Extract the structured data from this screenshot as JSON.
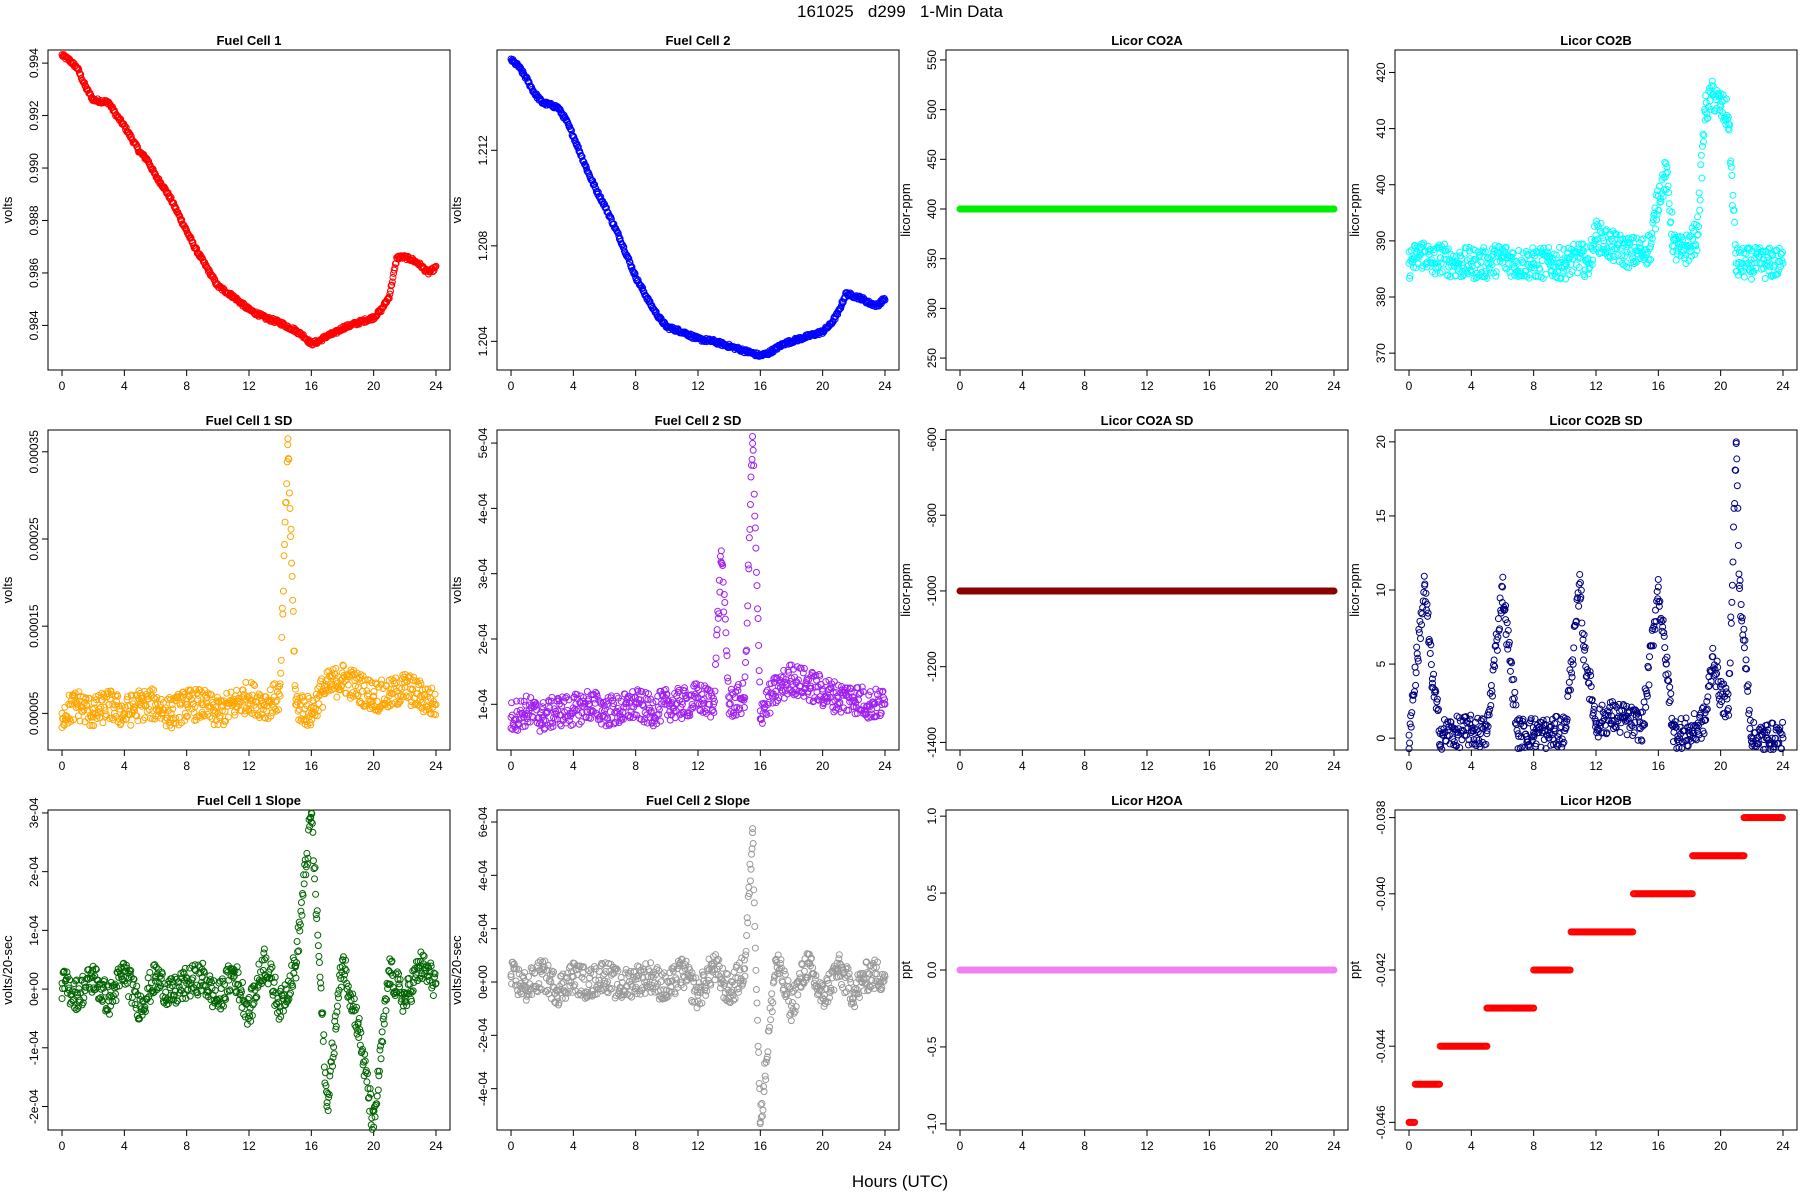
{
  "page": {
    "title": "161025   d299   1-Min Data",
    "xlabel": "Hours (UTC)"
  },
  "chart_data": [
    {
      "type": "line",
      "title": "Fuel Cell 1",
      "ylabel": "volts",
      "color": "#ff0000",
      "ylim": [
        0.9823,
        0.9945
      ],
      "yticks": [
        0.984,
        0.986,
        0.988,
        0.99,
        0.992,
        0.994
      ],
      "yticklabels": [
        "0.984",
        "0.986",
        "0.988",
        "0.990",
        "0.992",
        "0.994"
      ],
      "x": [
        0,
        0.5,
        1,
        1.5,
        2,
        3,
        3.5,
        4,
        4.5,
        5,
        5.5,
        6,
        6.5,
        7,
        7.5,
        8,
        8.5,
        9,
        9.5,
        10,
        11,
        12,
        13,
        14,
        15,
        15.5,
        16,
        16.5,
        17,
        17.5,
        18,
        19,
        20,
        20.5,
        21,
        21.5,
        22,
        22.5,
        23,
        23.5,
        24
      ],
      "values": [
        0.9943,
        0.9941,
        0.9938,
        0.9931,
        0.9926,
        0.9925,
        0.992,
        0.9916,
        0.9911,
        0.9906,
        0.9903,
        0.9897,
        0.9893,
        0.9888,
        0.9882,
        0.9876,
        0.987,
        0.9865,
        0.986,
        0.9855,
        0.9851,
        0.9846,
        0.9843,
        0.9841,
        0.9838,
        0.9836,
        0.9833,
        0.9834,
        0.9836,
        0.9837,
        0.9839,
        0.9841,
        0.9843,
        0.9846,
        0.9851,
        0.9866,
        0.9866,
        0.9865,
        0.9863,
        0.986,
        0.9862
      ]
    },
    {
      "type": "line",
      "title": "Fuel Cell 2",
      "ylabel": "volts",
      "color": "#0000ff",
      "ylim": [
        1.2028,
        1.2162
      ],
      "yticks": [
        1.204,
        1.208,
        1.212
      ],
      "yticklabels": [
        "1.204",
        "1.208",
        "1.212"
      ],
      "x": [
        0,
        0.5,
        1,
        1.5,
        2,
        3,
        3.5,
        4,
        4.5,
        5,
        5.5,
        6,
        6.5,
        7,
        7.5,
        8,
        8.5,
        9,
        9.5,
        10,
        11,
        12,
        13,
        14,
        15,
        15.5,
        16,
        16.5,
        17,
        17.5,
        18,
        19,
        20,
        20.5,
        21,
        21.5,
        22,
        22.5,
        23,
        23.5,
        24
      ],
      "values": [
        1.2158,
        1.2155,
        1.215,
        1.2144,
        1.214,
        1.2138,
        1.2133,
        1.2126,
        1.2118,
        1.211,
        1.2103,
        1.2097,
        1.209,
        1.2083,
        1.2075,
        1.2067,
        1.2061,
        1.2055,
        1.205,
        1.2046,
        1.2044,
        1.2041,
        1.204,
        1.2038,
        1.2036,
        1.2035,
        1.2034,
        1.2035,
        1.2037,
        1.2039,
        1.204,
        1.2042,
        1.2044,
        1.2047,
        1.2052,
        1.206,
        1.2059,
        1.2058,
        1.2056,
        1.2055,
        1.2058
      ]
    },
    {
      "type": "line",
      "title": "Licor CO2A",
      "ylabel": "licor-ppm",
      "color": "#00ee00",
      "ylim": [
        238,
        560
      ],
      "yticks": [
        250,
        300,
        350,
        400,
        450,
        500,
        550
      ],
      "yticklabels": [
        "250",
        "300",
        "350",
        "400",
        "450",
        "500",
        "550"
      ],
      "x": [
        0,
        24
      ],
      "values": [
        400,
        400
      ]
    },
    {
      "type": "scatter",
      "title": "Licor CO2B",
      "ylabel": "licor-ppm",
      "color": "#00ffff",
      "ylim": [
        367,
        424
      ],
      "yticks": [
        370,
        380,
        390,
        400,
        410,
        420
      ],
      "yticklabels": [
        "370",
        "380",
        "390",
        "400",
        "410",
        "420"
      ],
      "x": [
        0,
        0.5,
        1,
        1.5,
        2,
        3,
        4,
        5,
        6,
        7,
        8,
        9,
        10,
        11,
        11.5,
        12,
        12.5,
        13,
        14,
        15,
        15.5,
        16,
        16.5,
        17,
        17.5,
        18,
        18.5,
        19,
        19.5,
        20,
        20.5,
        21,
        22,
        23,
        24
      ],
      "values": [
        386,
        387,
        388,
        386,
        387,
        386,
        386,
        386,
        387,
        386,
        386,
        386,
        386,
        387,
        386,
        391,
        390,
        389,
        388,
        388,
        389,
        398,
        402,
        389,
        388,
        389,
        391,
        413,
        416,
        414,
        412,
        386,
        386,
        386,
        386
      ]
    },
    {
      "type": "scatter",
      "title": "Fuel Cell 1 SD",
      "ylabel": "volts",
      "color": "#ffa500",
      "ylim": [
        8e-06,
        0.000375
      ],
      "yticks": [
        5e-05,
        0.00015,
        0.00025,
        0.00035
      ],
      "yticklabels": [
        "0.00005",
        "0.00015",
        "0.00025",
        "0.00035"
      ],
      "x": [
        0,
        1,
        2,
        3,
        4,
        5,
        6,
        7,
        8,
        9,
        10,
        11,
        12,
        13,
        14,
        14.5,
        15,
        16,
        16.5,
        17,
        18,
        19,
        20,
        21,
        22,
        23,
        24
      ],
      "values": [
        5e-05,
        6e-05,
        5e-05,
        6e-05,
        5e-05,
        6e-05,
        6e-05,
        5e-05,
        6e-05,
        6e-05,
        5e-05,
        6e-05,
        7e-05,
        6e-05,
        7e-05,
        0.000365,
        6e-05,
        5e-05,
        7e-05,
        8e-05,
        9e-05,
        8e-05,
        7e-05,
        7e-05,
        8e-05,
        7e-05,
        6e-05
      ]
    },
    {
      "type": "scatter",
      "title": "Fuel Cell 2 SD",
      "ylabel": "volts",
      "color": "#a020f0",
      "ylim": [
        3e-05,
        0.00052
      ],
      "yticks": [
        0.0001,
        0.0002,
        0.0003,
        0.0004,
        0.0005
      ],
      "yticklabels": [
        "1e-04",
        "2e-04",
        "3e-04",
        "4e-04",
        "5e-04"
      ],
      "x": [
        0,
        1,
        2,
        3,
        4,
        5,
        6,
        7,
        8,
        9,
        10,
        11,
        12,
        13,
        13.5,
        14,
        15,
        15.5,
        16,
        17,
        18,
        19,
        20,
        21,
        22,
        23,
        24
      ],
      "values": [
        8e-05,
        9e-05,
        8e-05,
        9e-05,
        9e-05,
        0.0001,
        9e-05,
        9e-05,
        0.0001,
        9e-05,
        0.0001,
        0.0001,
        0.00011,
        0.0001,
        0.000335,
        0.0001,
        0.00011,
        0.00051,
        9e-05,
        0.00012,
        0.00014,
        0.00013,
        0.00012,
        0.00011,
        0.00011,
        0.0001,
        0.0001
      ]
    },
    {
      "type": "line",
      "title": "Licor CO2A SD",
      "ylabel": "licor-ppm",
      "color": "#8b0000",
      "ylim": [
        -1420,
        -575
      ],
      "yticks": [
        -1400,
        -1200,
        -1000,
        -800,
        -600
      ],
      "yticklabels": [
        "-1400",
        "-1200",
        "-1000",
        "-800",
        "-600"
      ],
      "x": [
        0,
        24
      ],
      "values": [
        -1000,
        -1000
      ]
    },
    {
      "type": "scatter",
      "title": "Licor CO2B SD",
      "ylabel": "licor-ppm",
      "color": "#000080",
      "ylim": [
        -0.8,
        20.8
      ],
      "yticks": [
        0,
        5,
        10,
        15,
        20
      ],
      "yticklabels": [
        "0",
        "5",
        "10",
        "15",
        "20"
      ],
      "x": [
        0,
        1,
        1.5,
        2,
        3,
        4,
        5,
        6,
        6.2,
        7,
        8,
        9,
        10,
        11,
        11.2,
        12,
        13,
        14,
        15,
        16,
        16.5,
        17,
        18,
        19,
        19.5,
        20,
        20.5,
        21,
        21.2,
        22,
        23,
        24
      ],
      "values": [
        0.2,
        10.3,
        4.0,
        0.3,
        0.4,
        0.5,
        0.3,
        10.2,
        8.0,
        0.3,
        0.4,
        0.3,
        0.5,
        10.5,
        6.2,
        1.0,
        1.5,
        1.2,
        0.8,
        10.2,
        5.0,
        0.4,
        0.3,
        1.2,
        5.5,
        3.0,
        2.0,
        20.0,
        10.3,
        0.0,
        0.0,
        0.0
      ]
    },
    {
      "type": "scatter",
      "title": "Fuel Cell 1 Slope",
      "ylabel": "volts/20-sec",
      "color": "#006400",
      "ylim": [
        -0.00024,
        0.000305
      ],
      "yticks": [
        -0.0002,
        -0.0001,
        0,
        0.0001,
        0.0002,
        0.0003
      ],
      "yticklabels": [
        "-2e-04",
        "-1e-04",
        "0e+00",
        "1e-04",
        "2e-04",
        "3e-04"
      ],
      "x": [
        0,
        1,
        2,
        3,
        4,
        5,
        6,
        7,
        8,
        9,
        10,
        11,
        12,
        13,
        14,
        15,
        16,
        17,
        18,
        19,
        20,
        21,
        22,
        23,
        24
      ],
      "values": [
        1e-05,
        -1e-05,
        2e-05,
        -2e-05,
        3e-05,
        -3e-05,
        2e-05,
        -1e-05,
        1e-05,
        2e-05,
        -2e-05,
        3e-05,
        -4e-05,
        5e-05,
        -3e-05,
        4e-05,
        0.0003,
        -0.0002,
        5e-05,
        -6e-05,
        -0.000235,
        3e-05,
        -2e-05,
        4e-05,
        1e-05
      ]
    },
    {
      "type": "scatter",
      "title": "Fuel Cell 2 Slope",
      "ylabel": "volts/20-sec",
      "color": "#999999",
      "ylim": [
        -0.000555,
        0.000645
      ],
      "yticks": [
        -0.0004,
        -0.0002,
        0,
        0.0002,
        0.0004,
        0.0006
      ],
      "yticklabels": [
        "-4e-04",
        "-2e-04",
        "0e+00",
        "2e-04",
        "4e-04",
        "6e-04"
      ],
      "x": [
        0,
        1,
        2,
        3,
        4,
        5,
        6,
        7,
        8,
        9,
        10,
        11,
        12,
        13,
        14,
        15,
        15.5,
        16,
        17,
        18,
        19,
        20,
        21,
        22,
        23,
        24
      ],
      "values": [
        2e-05,
        -2e-05,
        3e-05,
        -3e-05,
        2e-05,
        -1e-05,
        3e-05,
        -2e-05,
        1e-05,
        2e-05,
        -3e-05,
        4e-05,
        -5e-05,
        6e-05,
        -4e-05,
        5e-05,
        0.00056,
        -0.000525,
        8e-05,
        -9e-05,
        7e-05,
        -6e-05,
        5e-05,
        -4e-05,
        3e-05,
        2e-05
      ]
    },
    {
      "type": "line",
      "title": "Licor H2OA",
      "ylabel": "ppt",
      "color": "#ee82ee",
      "ylim": [
        -1.04,
        1.04
      ],
      "yticks": [
        -1.0,
        -0.5,
        0.0,
        0.5,
        1.0
      ],
      "yticklabels": [
        "-1.0",
        "-0.5",
        "0.0",
        "0.5",
        "1.0"
      ],
      "x": [
        0,
        24
      ],
      "values": [
        0.0,
        0.0
      ]
    },
    {
      "type": "scatter",
      "title": "Licor H2OB",
      "ylabel": "ppt",
      "color": "#ff0000",
      "ylim": [
        -0.0462,
        -0.0378
      ],
      "yticks": [
        -0.046,
        -0.044,
        -0.042,
        -0.04,
        -0.038
      ],
      "yticklabels": [
        "-0.046",
        "-0.044",
        "-0.042",
        "-0.040",
        "-0.038"
      ],
      "segments": [
        {
          "x0": 0.0,
          "x1": 0.4,
          "y": -0.046
        },
        {
          "x0": 0.4,
          "x1": 2.0,
          "y": -0.045
        },
        {
          "x0": 2.0,
          "x1": 5.0,
          "y": -0.044
        },
        {
          "x0": 5.0,
          "x1": 8.0,
          "y": -0.043
        },
        {
          "x0": 8.0,
          "x1": 10.4,
          "y": -0.042
        },
        {
          "x0": 10.4,
          "x1": 14.4,
          "y": -0.041
        },
        {
          "x0": 14.4,
          "x1": 18.2,
          "y": -0.04
        },
        {
          "x0": 18.2,
          "x1": 21.5,
          "y": -0.039
        },
        {
          "x0": 21.5,
          "x1": 24.0,
          "y": -0.038
        }
      ]
    }
  ],
  "xaxis": {
    "xlim": [
      -0.9,
      24.9
    ],
    "ticks": [
      0,
      4,
      8,
      12,
      16,
      20,
      24
    ],
    "ticklabels": [
      "0",
      "4",
      "8",
      "12",
      "16",
      "20",
      "24"
    ]
  }
}
